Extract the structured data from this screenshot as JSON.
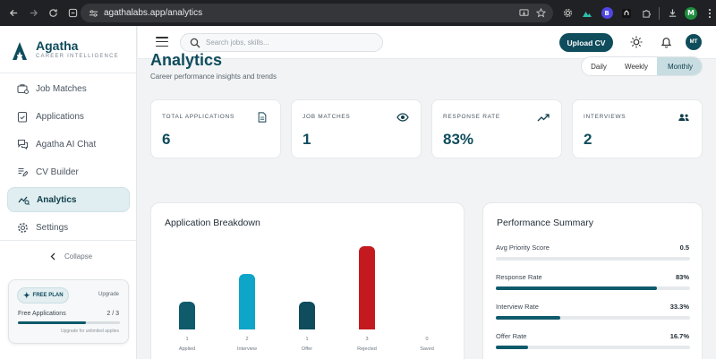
{
  "browser": {
    "url": "agathalabs.app/analytics",
    "profile_initial": "M",
    "ext_letter": "B"
  },
  "brand": {
    "name": "Agatha",
    "tagline": "CAREER INTELLIGENCE"
  },
  "sidebar": {
    "items": [
      {
        "label": "Job Matches",
        "icon": "briefcase-icon",
        "active": false
      },
      {
        "label": "Applications",
        "icon": "clipboard-check-icon",
        "active": false
      },
      {
        "label": "Agatha AI Chat",
        "icon": "chat-icon",
        "active": false
      },
      {
        "label": "CV Builder",
        "icon": "document-edit-icon",
        "active": false
      },
      {
        "label": "Analytics",
        "icon": "analytics-icon",
        "active": true
      },
      {
        "label": "Settings",
        "icon": "gear-icon",
        "active": false
      }
    ],
    "collapse_label": "Collapse",
    "plan": {
      "badge": "FREE PLAN",
      "upgrade": "Upgrade",
      "usage_label": "Free Applications",
      "usage_count": "2 / 3",
      "usage_fraction": 0.667,
      "note": "Upgrade for unlimited applies"
    }
  },
  "header": {
    "search_placeholder": "Search jobs, skills...",
    "upload_label": "Upload CV",
    "avatar_initials": "MT"
  },
  "page": {
    "title": "Analytics",
    "subtitle": "Career performance insights and trends",
    "periods": [
      "Daily",
      "Weekly",
      "Monthly"
    ],
    "selected_period": "Monthly"
  },
  "stats": [
    {
      "label": "TOTAL APPLICATIONS",
      "value": "6",
      "icon": "document-icon"
    },
    {
      "label": "JOB MATCHES",
      "value": "1",
      "icon": "eye-icon"
    },
    {
      "label": "RESPONSE RATE",
      "value": "83%",
      "icon": "trending-up-icon"
    },
    {
      "label": "INTERVIEWS",
      "value": "2",
      "icon": "users-icon"
    }
  ],
  "breakdown": {
    "title": "Application Breakdown",
    "chart_data": {
      "type": "bar",
      "categories": [
        "Applied",
        "Interview",
        "Offer",
        "Rejected",
        "Saved"
      ],
      "values": [
        1,
        2,
        1,
        3,
        0
      ],
      "colors": [
        "#0f5a6b",
        "#0ea5c9",
        "#0f4c5c",
        "#c41a1f",
        "#0f5a6b"
      ]
    }
  },
  "summary": {
    "title": "Performance Summary",
    "metrics": [
      {
        "label": "Avg Priority Score",
        "value": "0.5",
        "fraction": 0.0
      },
      {
        "label": "Response Rate",
        "value": "83%",
        "fraction": 0.83
      },
      {
        "label": "Interview Rate",
        "value": "33.3%",
        "fraction": 0.333
      },
      {
        "label": "Offer Rate",
        "value": "16.7%",
        "fraction": 0.167
      }
    ]
  }
}
